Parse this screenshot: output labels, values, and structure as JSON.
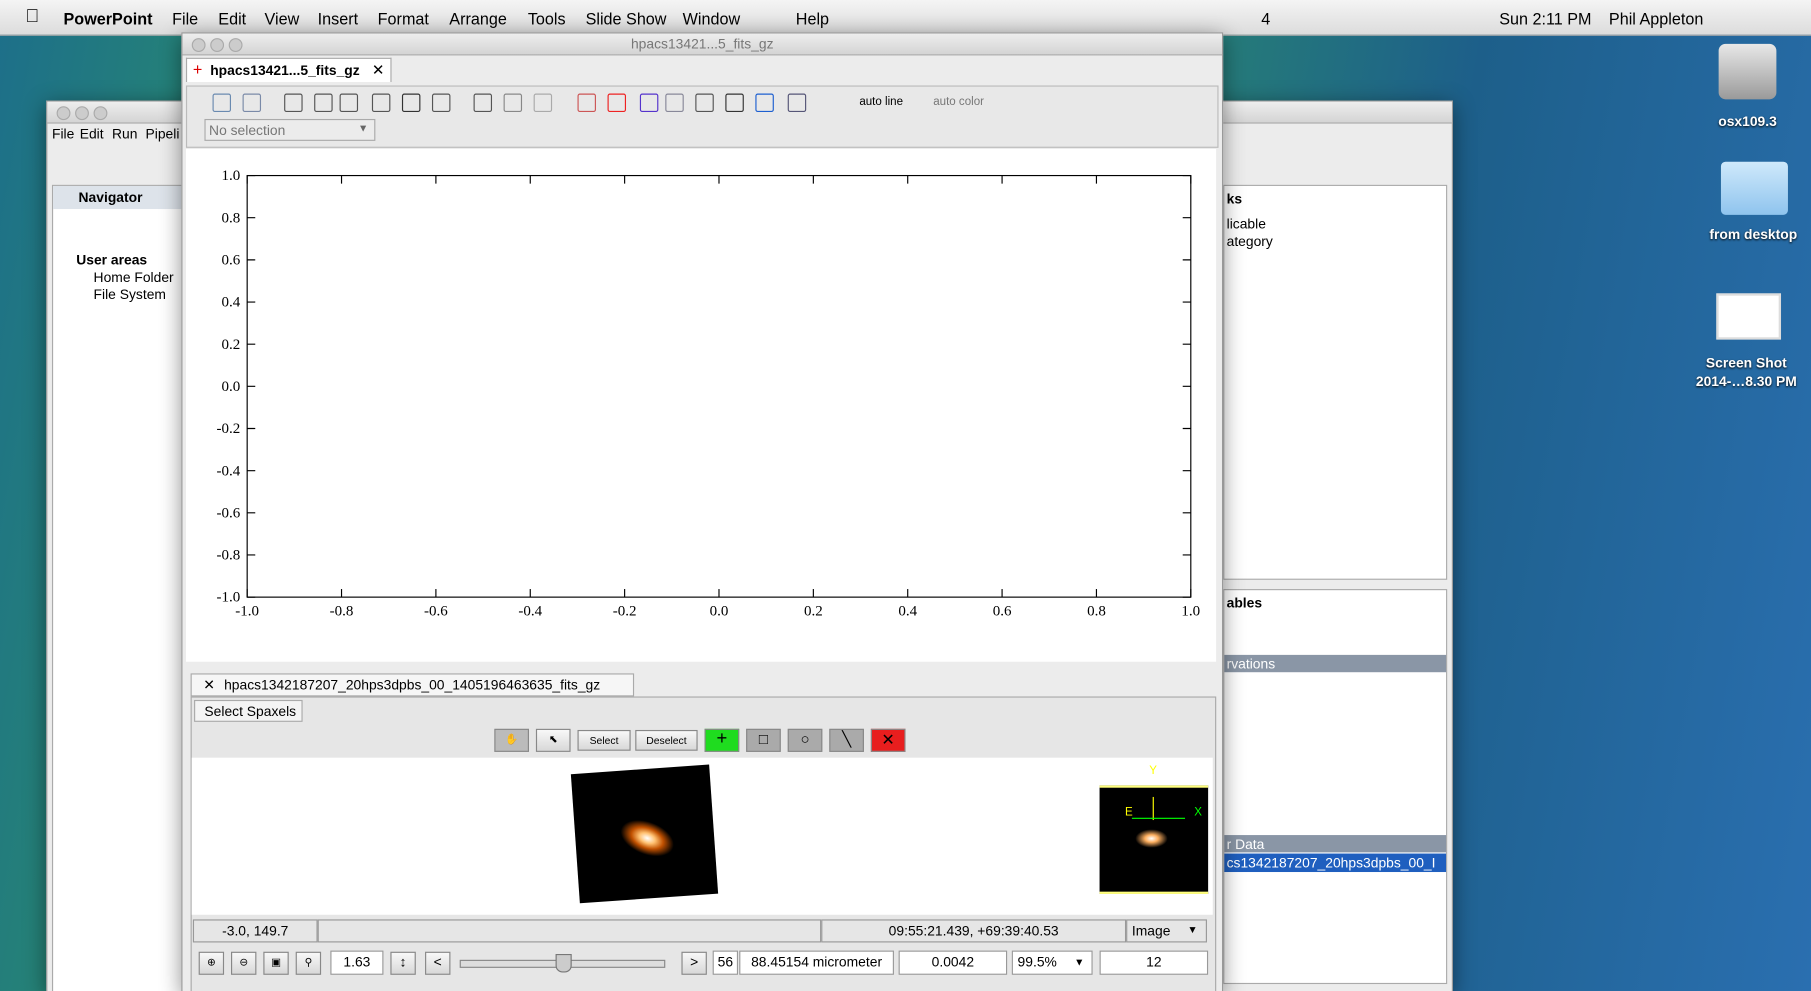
{
  "menubar": {
    "app": "PowerPoint",
    "items": [
      "File",
      "Edit",
      "View",
      "Insert",
      "Format",
      "Arrange",
      "Tools",
      "Slide Show",
      "Window",
      "Help"
    ],
    "status": {
      "count": "4",
      "clock": "Sun 2:11 PM",
      "user": "Phil Appleton"
    }
  },
  "desktop": {
    "icons": [
      {
        "label": [
          "osx109.3"
        ]
      },
      {
        "label": [
          "from desktop"
        ]
      },
      {
        "label": [
          "Screen Shot",
          "2014-…8.30 PM"
        ]
      }
    ]
  },
  "back_window": {
    "menu": [
      "File",
      "Edit",
      "Run",
      "Pipeli"
    ],
    "navigator": {
      "title": "Navigator",
      "tree": [
        "User areas",
        "Home Folder",
        "File System"
      ]
    },
    "right_panels": {
      "top_tab": "ks",
      "top_lines": [
        "licable",
        "ategory"
      ],
      "bottom_tab": "ables",
      "header": "rvations",
      "data_header": "r Data",
      "selected_item": "cs1342187207_20hps3dpbs_00_I"
    }
  },
  "front_window": {
    "title": "hpacs13421...5_fits_gz",
    "tab": "hpacs13421...5_fits_gz",
    "toolbar": {
      "line": "auto line",
      "color": "auto color"
    },
    "selection": "No selection",
    "plot": {
      "xlim": [
        -1,
        1
      ],
      "ylim": [
        -1,
        1
      ],
      "xticks": [
        {
          "value": -1,
          "label": "-1.0"
        },
        {
          "value": -0.8,
          "label": "-0.8"
        },
        {
          "value": -0.6,
          "label": "-0.6"
        },
        {
          "value": -0.4,
          "label": "-0.4"
        },
        {
          "value": -0.2,
          "label": "-0.2"
        },
        {
          "value": 0,
          "label": "0.0"
        },
        {
          "value": 0.2,
          "label": "0.2"
        },
        {
          "value": 0.4,
          "label": "0.4"
        },
        {
          "value": 0.6,
          "label": "0.6"
        },
        {
          "value": 0.8,
          "label": "0.8"
        },
        {
          "value": 1,
          "label": "1.0"
        }
      ],
      "yticks": [
        {
          "value": -1,
          "label": "-1.0"
        },
        {
          "value": -0.8,
          "label": "-0.8"
        },
        {
          "value": -0.6,
          "label": "-0.6"
        },
        {
          "value": -0.4,
          "label": "-0.4"
        },
        {
          "value": -0.2,
          "label": "-0.2"
        },
        {
          "value": 0,
          "label": "0.0"
        },
        {
          "value": 0.2,
          "label": "0.2"
        },
        {
          "value": 0.4,
          "label": "0.4"
        },
        {
          "value": 0.6,
          "label": "0.6"
        },
        {
          "value": 0.8,
          "label": "0.8"
        },
        {
          "value": 1,
          "label": "1.0"
        }
      ]
    },
    "cube_view": {
      "tab": "hpacs1342187207_20hps3dpbs_00_1405196463635_fits_gz",
      "subtab": "Select Spaxels",
      "buttons": [
        "Select",
        "Deselect"
      ],
      "compass": [
        "Y",
        "X",
        "E"
      ],
      "status": {
        "pixel": "-3.0, 149.7",
        "coords": "09:55:21.439, +69:39:40.53",
        "mode": "Image"
      },
      "controls": {
        "zoom": "1.63",
        "prev": "<",
        "next": ">",
        "slice": "56",
        "wavelength": "88.45154 micrometer",
        "value": "0.0042",
        "cut": "99.5%",
        "count": "12"
      }
    }
  }
}
